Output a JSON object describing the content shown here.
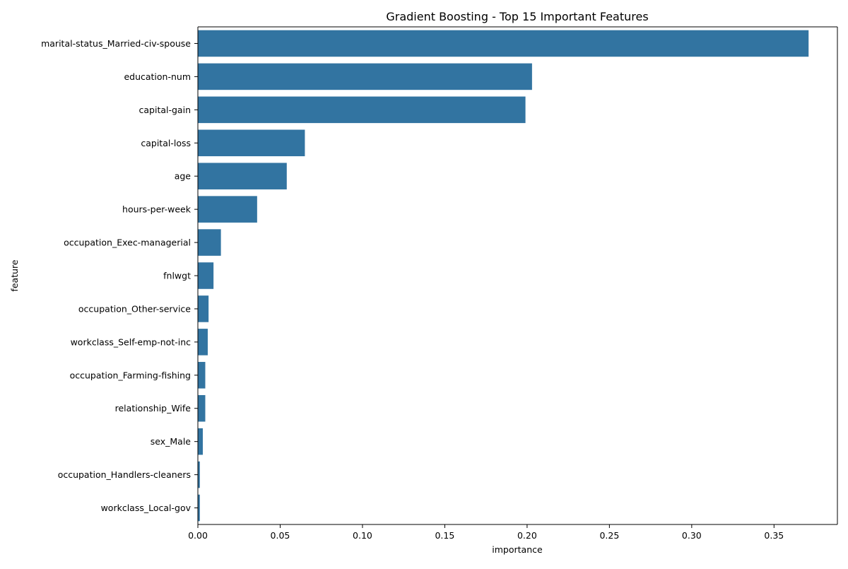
{
  "chart_data": {
    "type": "bar",
    "orientation": "horizontal",
    "title": "Gradient Boosting - Top 15 Important Features",
    "xlabel": "importance",
    "ylabel": "feature",
    "xlim": [
      0,
      0.3885
    ],
    "xticks": [
      0.0,
      0.05,
      0.1,
      0.15,
      0.2,
      0.25,
      0.3,
      0.35
    ],
    "xtick_labels": [
      "0.00",
      "0.05",
      "0.10",
      "0.15",
      "0.20",
      "0.25",
      "0.30",
      "0.35"
    ],
    "grid": false,
    "legend": "none",
    "bar_color": "#3274a1",
    "categories": [
      "marital-status_Married-civ-spouse",
      "education-num",
      "capital-gain",
      "capital-loss",
      "age",
      "hours-per-week",
      "occupation_Exec-managerial",
      "fnlwgt",
      "occupation_Other-service",
      "workclass_Self-emp-not-inc",
      "occupation_Farming-fishing",
      "relationship_Wife",
      "sex_Male",
      "occupation_Handlers-cleaners",
      "workclass_Local-gov"
    ],
    "values": [
      0.371,
      0.203,
      0.199,
      0.065,
      0.054,
      0.036,
      0.014,
      0.0095,
      0.0065,
      0.006,
      0.0045,
      0.0045,
      0.003,
      0.0012,
      0.0012
    ]
  }
}
